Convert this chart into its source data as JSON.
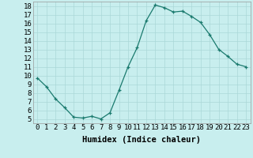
{
  "x": [
    0,
    1,
    2,
    3,
    4,
    5,
    6,
    7,
    8,
    9,
    10,
    11,
    12,
    13,
    14,
    15,
    16,
    17,
    18,
    19,
    20,
    21,
    22,
    23
  ],
  "y": [
    9.7,
    8.7,
    7.3,
    6.3,
    5.2,
    5.1,
    5.3,
    5.0,
    5.7,
    8.3,
    11.0,
    13.2,
    16.3,
    18.1,
    17.8,
    17.3,
    17.4,
    16.8,
    16.1,
    14.7,
    13.0,
    12.2,
    11.3,
    11.0
  ],
  "xlabel": "Humidex (Indice chaleur)",
  "xlim": [
    -0.5,
    23.5
  ],
  "ylim": [
    4.5,
    18.5
  ],
  "xticks": [
    0,
    1,
    2,
    3,
    4,
    5,
    6,
    7,
    8,
    9,
    10,
    11,
    12,
    13,
    14,
    15,
    16,
    17,
    18,
    19,
    20,
    21,
    22,
    23
  ],
  "yticks": [
    5,
    6,
    7,
    8,
    9,
    10,
    11,
    12,
    13,
    14,
    15,
    16,
    17,
    18
  ],
  "line_color": "#1a7a6e",
  "bg_color": "#c8eeee",
  "grid_color": "#aad8d8",
  "tick_fontsize": 6.5,
  "xlabel_fontsize": 7.5
}
